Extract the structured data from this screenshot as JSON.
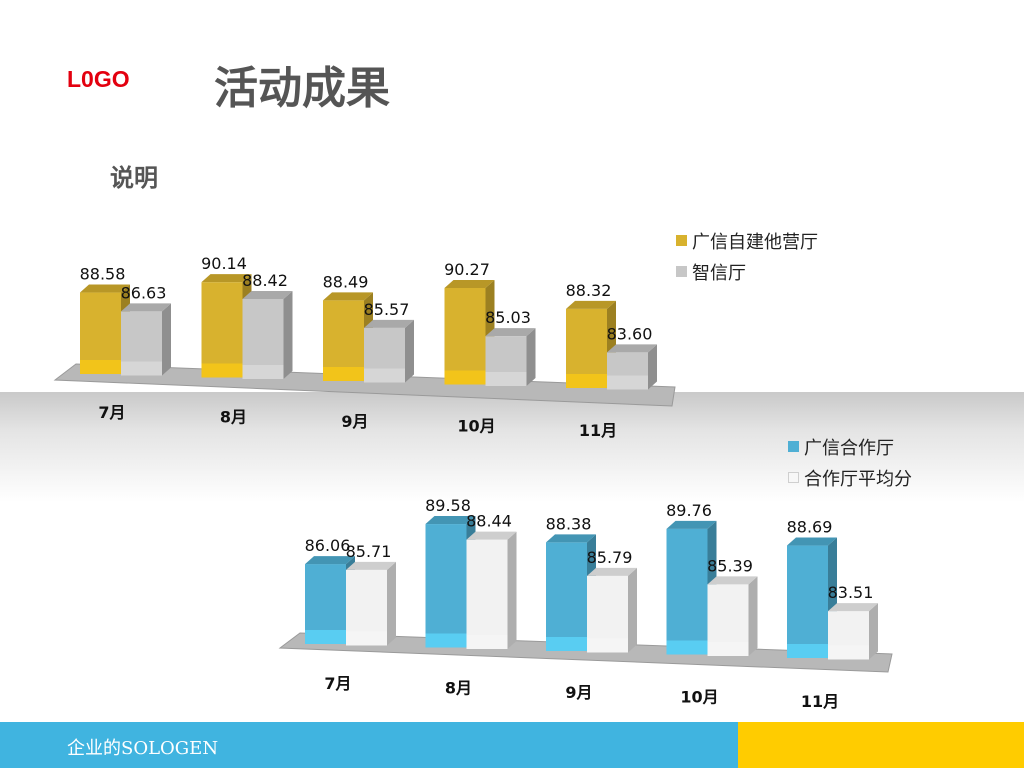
{
  "header": {
    "logo_text": "L0GO",
    "title": "活动成果",
    "subtitle": "说明"
  },
  "footer": {
    "text": "企业的SOLOGEN"
  },
  "colors": {
    "brand_red": "#e3000f",
    "footer_blue": "#40b4e0",
    "footer_yellow": "#ffcc00",
    "bar_gold": "#d8b22e",
    "bar_gray": "#c7c7c7",
    "bar_blue": "#4fafd4",
    "bar_white": "#f2f2f2"
  },
  "chart_data": [
    {
      "type": "bar",
      "categories": [
        "7月",
        "8月",
        "9月",
        "10月",
        "11月"
      ],
      "series": [
        {
          "name": "广信自建他营厅",
          "values": [
            88.58,
            90.14,
            88.49,
            90.27,
            88.32
          ],
          "color": "#d8b22e"
        },
        {
          "name": "智信厅",
          "values": [
            86.63,
            88.42,
            85.57,
            85.03,
            83.6
          ],
          "color": "#c7c7c7"
        }
      ],
      "value_labels": [
        [
          "88.58",
          "90.14",
          "88.49",
          "90.27",
          "88.32"
        ],
        [
          "86.63",
          "88.42",
          "85.57",
          "85.03",
          "83.60"
        ]
      ],
      "legend_position": "top-right",
      "grid": false
    },
    {
      "type": "bar",
      "categories": [
        "7月",
        "8月",
        "9月",
        "10月",
        "11月"
      ],
      "series": [
        {
          "name": "广信合作厅",
          "values": [
            86.06,
            89.58,
            88.38,
            89.76,
            88.69
          ],
          "color": "#4fafd4"
        },
        {
          "name": "合作厅平均分",
          "values": [
            85.71,
            88.44,
            85.79,
            85.39,
            83.51
          ],
          "color": "#f2f2f2"
        }
      ],
      "value_labels": [
        [
          "86.06",
          "89.58",
          "88.38",
          "89.76",
          "88.69"
        ],
        [
          "85.71",
          "88.44",
          "85.79",
          "85.39",
          "83.51"
        ]
      ],
      "legend_position": "top-right",
      "grid": false
    }
  ]
}
